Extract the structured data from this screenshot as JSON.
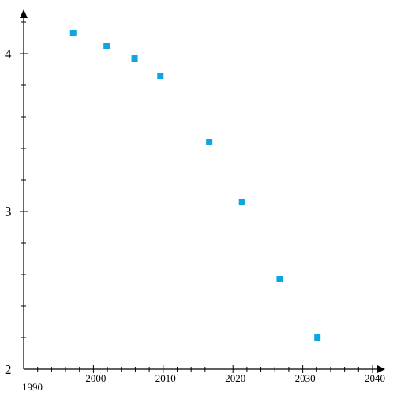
{
  "chart_data": {
    "type": "scatter",
    "title": "",
    "xlabel": "",
    "ylabel": "",
    "xlim": [
      1990,
      2040
    ],
    "ylim": [
      2,
      4.25
    ],
    "grid": false,
    "legend": "none",
    "marker_color": "#0ea5e0",
    "marker_shape": "square",
    "x_ticks": [
      "1990",
      "2000",
      "2010",
      "2020",
      "2030",
      "2040"
    ],
    "y_ticks": [
      "2",
      "3",
      "4"
    ],
    "points": [
      {
        "x": 1997.1,
        "y": 4.13
      },
      {
        "x": 2001.9,
        "y": 4.05
      },
      {
        "x": 2005.9,
        "y": 3.97
      },
      {
        "x": 2009.6,
        "y": 3.86
      },
      {
        "x": 2016.6,
        "y": 3.44
      },
      {
        "x": 2021.3,
        "y": 3.06
      },
      {
        "x": 2026.7,
        "y": 2.57
      },
      {
        "x": 2032.1,
        "y": 2.2
      }
    ]
  }
}
